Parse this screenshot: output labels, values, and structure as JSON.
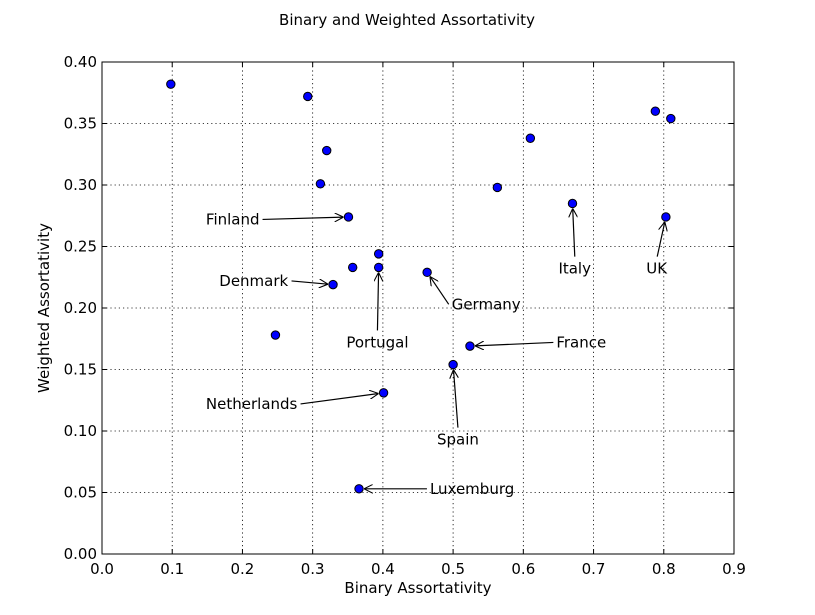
{
  "chart_data": {
    "type": "scatter",
    "title": "Binary and Weighted Assortativity",
    "xlabel": "Binary Assortativity",
    "ylabel": "Weighted Assortativity",
    "xlim": [
      0.0,
      0.9
    ],
    "ylim": [
      0.0,
      0.4
    ],
    "grid": true,
    "xticks": [
      0.0,
      0.1,
      0.2,
      0.3,
      0.4,
      0.5,
      0.6,
      0.7,
      0.8,
      0.9
    ],
    "yticks": [
      0.0,
      0.05,
      0.1,
      0.15,
      0.2,
      0.25,
      0.3,
      0.35,
      0.4
    ],
    "xtick_labels": [
      "0.0",
      "0.1",
      "0.2",
      "0.3",
      "0.4",
      "0.5",
      "0.6",
      "0.7",
      "0.8",
      "0.9"
    ],
    "ytick_labels": [
      "0.00",
      "0.05",
      "0.10",
      "0.15",
      "0.20",
      "0.25",
      "0.30",
      "0.35",
      "0.40"
    ],
    "points": [
      {
        "x": 0.098,
        "y": 0.382
      },
      {
        "x": 0.293,
        "y": 0.372
      },
      {
        "x": 0.32,
        "y": 0.328
      },
      {
        "x": 0.311,
        "y": 0.301
      },
      {
        "x": 0.351,
        "y": 0.274
      },
      {
        "x": 0.394,
        "y": 0.244
      },
      {
        "x": 0.357,
        "y": 0.233
      },
      {
        "x": 0.394,
        "y": 0.233
      },
      {
        "x": 0.463,
        "y": 0.229
      },
      {
        "x": 0.329,
        "y": 0.219
      },
      {
        "x": 0.247,
        "y": 0.178
      },
      {
        "x": 0.524,
        "y": 0.169
      },
      {
        "x": 0.5,
        "y": 0.154
      },
      {
        "x": 0.401,
        "y": 0.131
      },
      {
        "x": 0.366,
        "y": 0.053
      },
      {
        "x": 0.563,
        "y": 0.298
      },
      {
        "x": 0.61,
        "y": 0.338
      },
      {
        "x": 0.67,
        "y": 0.285
      },
      {
        "x": 0.788,
        "y": 0.36
      },
      {
        "x": 0.81,
        "y": 0.354
      },
      {
        "x": 0.803,
        "y": 0.274
      }
    ],
    "annotations": [
      {
        "text": "Finland",
        "point_x": 0.351,
        "point_y": 0.274,
        "text_x": 0.148,
        "text_y": 0.272,
        "anchor": "start"
      },
      {
        "text": "Denmark",
        "point_x": 0.329,
        "point_y": 0.219,
        "text_x": 0.167,
        "text_y": 0.222,
        "anchor": "start"
      },
      {
        "text": "Portugal",
        "point_x": 0.394,
        "point_y": 0.233,
        "text_x": 0.348,
        "text_y": 0.172,
        "anchor": "start"
      },
      {
        "text": "Germany",
        "point_x": 0.463,
        "point_y": 0.229,
        "text_x": 0.498,
        "text_y": 0.203,
        "anchor": "start"
      },
      {
        "text": "France",
        "point_x": 0.524,
        "point_y": 0.169,
        "text_x": 0.647,
        "text_y": 0.172,
        "anchor": "start"
      },
      {
        "text": "Netherlands",
        "point_x": 0.401,
        "point_y": 0.131,
        "text_x": 0.148,
        "text_y": 0.122,
        "anchor": "start"
      },
      {
        "text": "Spain",
        "point_x": 0.5,
        "point_y": 0.154,
        "text_x": 0.477,
        "text_y": 0.093,
        "anchor": "start"
      },
      {
        "text": "Luxemburg",
        "point_x": 0.366,
        "point_y": 0.053,
        "text_x": 0.467,
        "text_y": 0.053,
        "anchor": "start"
      },
      {
        "text": "Italy",
        "point_x": 0.67,
        "point_y": 0.285,
        "text_x": 0.65,
        "text_y": 0.232,
        "anchor": "start"
      },
      {
        "text": "UK",
        "point_x": 0.803,
        "point_y": 0.274,
        "text_x": 0.775,
        "text_y": 0.232,
        "anchor": "start"
      }
    ]
  }
}
